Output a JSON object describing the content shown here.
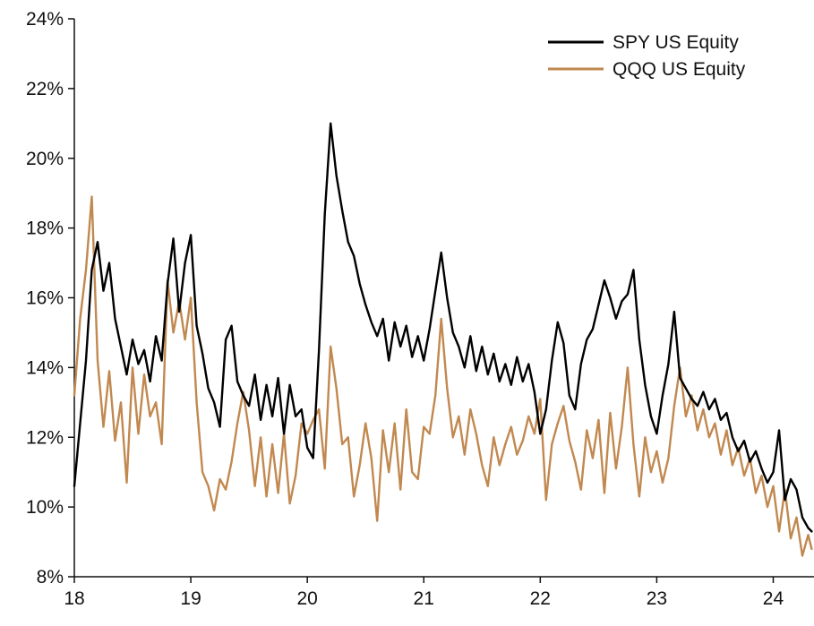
{
  "chart_data": {
    "type": "line",
    "title": "",
    "xlabel": "",
    "ylabel": "",
    "xlim": [
      18,
      24.35
    ],
    "ylim": [
      8,
      24
    ],
    "x_ticks": [
      18,
      19,
      20,
      21,
      22,
      23,
      24
    ],
    "x_tick_labels": [
      "18",
      "19",
      "20",
      "21",
      "22",
      "23",
      "24"
    ],
    "y_ticks": [
      8,
      10,
      12,
      14,
      16,
      18,
      20,
      22,
      24
    ],
    "y_tick_labels": [
      "8%",
      "10%",
      "12%",
      "14%",
      "16%",
      "18%",
      "20%",
      "22%",
      "24%"
    ],
    "grid": false,
    "legend_position": "top-right",
    "series": [
      {
        "name": "SPY US Equity",
        "color": "#000000",
        "x": [
          18.0,
          18.05,
          18.1,
          18.15,
          18.2,
          18.25,
          18.3,
          18.35,
          18.4,
          18.45,
          18.5,
          18.55,
          18.6,
          18.65,
          18.7,
          18.75,
          18.8,
          18.85,
          18.9,
          18.95,
          19.0,
          19.05,
          19.1,
          19.15,
          19.2,
          19.25,
          19.3,
          19.35,
          19.4,
          19.45,
          19.5,
          19.55,
          19.6,
          19.65,
          19.7,
          19.75,
          19.8,
          19.85,
          19.9,
          19.95,
          20.0,
          20.05,
          20.1,
          20.15,
          20.2,
          20.25,
          20.3,
          20.35,
          20.4,
          20.45,
          20.5,
          20.55,
          20.6,
          20.65,
          20.7,
          20.75,
          20.8,
          20.85,
          20.9,
          20.95,
          21.0,
          21.05,
          21.1,
          21.15,
          21.2,
          21.25,
          21.3,
          21.35,
          21.4,
          21.45,
          21.5,
          21.55,
          21.6,
          21.65,
          21.7,
          21.75,
          21.8,
          21.85,
          21.9,
          21.95,
          22.0,
          22.05,
          22.1,
          22.15,
          22.2,
          22.25,
          22.3,
          22.35,
          22.4,
          22.45,
          22.5,
          22.55,
          22.6,
          22.65,
          22.7,
          22.75,
          22.8,
          22.85,
          22.9,
          22.95,
          23.0,
          23.05,
          23.1,
          23.15,
          23.2,
          23.25,
          23.3,
          23.35,
          23.4,
          23.45,
          23.5,
          23.55,
          23.6,
          23.65,
          23.7,
          23.75,
          23.8,
          23.85,
          23.9,
          23.95,
          24.0,
          24.05,
          24.1,
          24.15,
          24.2,
          24.25,
          24.3,
          24.33
        ],
        "y": [
          10.6,
          12.4,
          14.2,
          16.8,
          17.6,
          16.2,
          17.0,
          15.4,
          14.6,
          13.8,
          14.8,
          14.1,
          14.5,
          13.6,
          14.9,
          14.2,
          16.4,
          17.7,
          15.6,
          17.0,
          17.8,
          15.2,
          14.4,
          13.4,
          13.0,
          12.3,
          14.8,
          15.2,
          13.6,
          13.2,
          12.9,
          13.8,
          12.5,
          13.5,
          12.6,
          13.7,
          12.1,
          13.5,
          12.6,
          12.8,
          11.7,
          11.4,
          14.5,
          18.4,
          21.0,
          19.5,
          18.5,
          17.6,
          17.2,
          16.4,
          15.8,
          15.3,
          14.9,
          15.4,
          14.2,
          15.3,
          14.6,
          15.2,
          14.3,
          14.9,
          14.2,
          15.1,
          16.2,
          17.3,
          16.0,
          15.0,
          14.6,
          14.0,
          14.9,
          13.9,
          14.6,
          13.8,
          14.4,
          13.6,
          14.1,
          13.5,
          14.3,
          13.6,
          14.1,
          13.3,
          12.1,
          12.8,
          14.2,
          15.3,
          14.7,
          13.2,
          12.8,
          14.1,
          14.8,
          15.1,
          15.8,
          16.5,
          16.0,
          15.4,
          15.9,
          16.1,
          16.8,
          14.8,
          13.5,
          12.6,
          12.1,
          13.2,
          14.1,
          15.6,
          13.7,
          13.4,
          13.1,
          12.9,
          13.3,
          12.8,
          13.1,
          12.5,
          12.7,
          12.0,
          11.6,
          11.9,
          11.3,
          11.6,
          11.1,
          10.7,
          11.0,
          12.2,
          10.2,
          10.8,
          10.5,
          9.7,
          9.4,
          9.3
        ]
      },
      {
        "name": "QQQ US Equity",
        "color": "#C1884F",
        "x": [
          18.0,
          18.05,
          18.1,
          18.15,
          18.2,
          18.25,
          18.3,
          18.35,
          18.4,
          18.45,
          18.5,
          18.55,
          18.6,
          18.65,
          18.7,
          18.75,
          18.8,
          18.85,
          18.9,
          18.95,
          19.0,
          19.05,
          19.1,
          19.15,
          19.2,
          19.25,
          19.3,
          19.35,
          19.4,
          19.45,
          19.5,
          19.55,
          19.6,
          19.65,
          19.7,
          19.75,
          19.8,
          19.85,
          19.9,
          19.95,
          20.0,
          20.05,
          20.1,
          20.15,
          20.2,
          20.25,
          20.3,
          20.35,
          20.4,
          20.45,
          20.5,
          20.55,
          20.6,
          20.65,
          20.7,
          20.75,
          20.8,
          20.85,
          20.9,
          20.95,
          21.0,
          21.05,
          21.1,
          21.15,
          21.2,
          21.25,
          21.3,
          21.35,
          21.4,
          21.45,
          21.5,
          21.55,
          21.6,
          21.65,
          21.7,
          21.75,
          21.8,
          21.85,
          21.9,
          21.95,
          22.0,
          22.05,
          22.1,
          22.15,
          22.2,
          22.25,
          22.3,
          22.35,
          22.4,
          22.45,
          22.5,
          22.55,
          22.6,
          22.65,
          22.7,
          22.75,
          22.8,
          22.85,
          22.9,
          22.95,
          23.0,
          23.05,
          23.1,
          23.15,
          23.2,
          23.25,
          23.3,
          23.35,
          23.4,
          23.45,
          23.5,
          23.55,
          23.6,
          23.65,
          23.7,
          23.75,
          23.8,
          23.85,
          23.9,
          23.95,
          24.0,
          24.05,
          24.1,
          24.15,
          24.2,
          24.25,
          24.3,
          24.33
        ],
        "y": [
          13.2,
          15.4,
          16.8,
          18.9,
          14.2,
          12.3,
          13.9,
          11.9,
          13.0,
          10.7,
          14.0,
          12.1,
          13.8,
          12.6,
          13.0,
          11.8,
          16.5,
          15.0,
          15.9,
          14.8,
          16.0,
          13.0,
          11.0,
          10.6,
          9.9,
          10.8,
          10.5,
          11.3,
          12.4,
          13.3,
          12.2,
          10.6,
          12.0,
          10.3,
          11.8,
          10.4,
          12.1,
          10.1,
          10.9,
          12.4,
          12.1,
          12.5,
          12.8,
          11.1,
          14.6,
          13.4,
          11.8,
          12.0,
          10.3,
          11.2,
          12.4,
          11.4,
          9.6,
          12.2,
          11.0,
          12.4,
          10.5,
          12.8,
          11.0,
          10.8,
          12.3,
          12.1,
          13.2,
          15.4,
          13.4,
          12.0,
          12.6,
          11.5,
          12.8,
          12.1,
          11.2,
          10.6,
          12.0,
          11.2,
          11.8,
          12.3,
          11.5,
          11.9,
          12.6,
          12.1,
          13.1,
          10.2,
          11.8,
          12.4,
          12.9,
          11.9,
          11.3,
          10.5,
          12.2,
          11.4,
          12.5,
          10.4,
          12.7,
          11.1,
          12.3,
          14.0,
          11.8,
          10.3,
          12.0,
          11.0,
          11.6,
          10.7,
          11.4,
          12.9,
          14.0,
          12.6,
          13.2,
          12.2,
          12.8,
          12.0,
          12.4,
          11.5,
          12.2,
          11.2,
          11.7,
          10.9,
          11.4,
          10.4,
          10.9,
          10.0,
          10.6,
          9.3,
          10.5,
          9.1,
          9.7,
          8.6,
          9.2,
          8.8
        ]
      }
    ]
  }
}
